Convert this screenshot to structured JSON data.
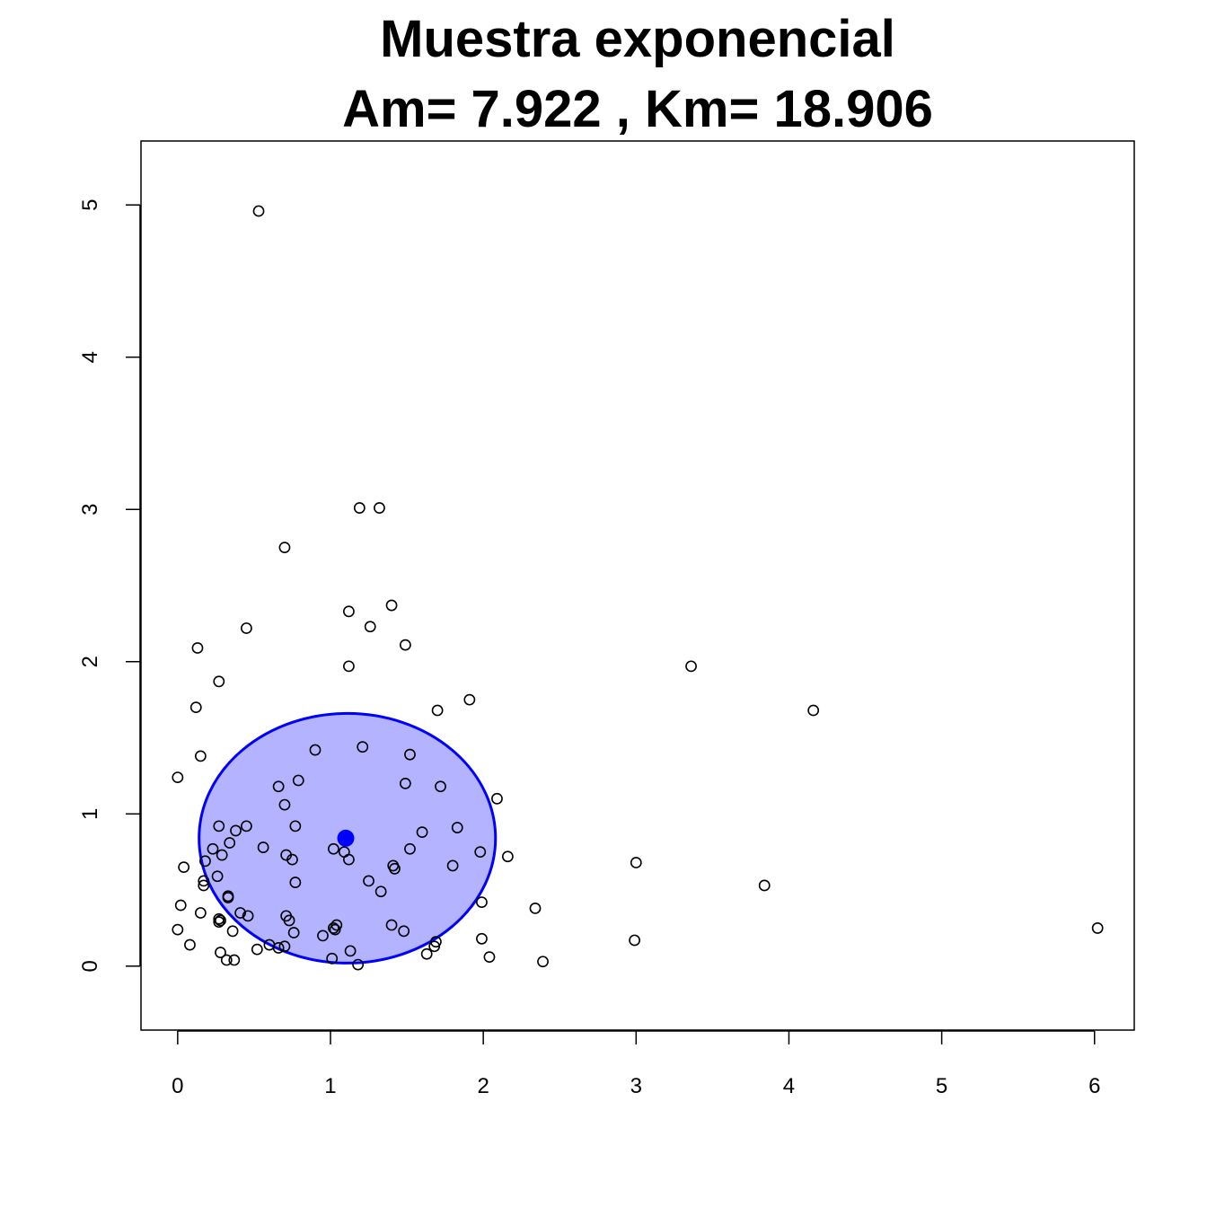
{
  "chart_data": {
    "type": "scatter",
    "title": "Muestra exponencial",
    "subtitle": "Am= 7.922 , Km= 18.906",
    "xlabel": "",
    "ylabel": "",
    "xlim": [
      -0.24,
      6.26
    ],
    "ylim": [
      -0.42,
      5.42
    ],
    "xticks": [
      "0",
      "1",
      "2",
      "3",
      "4",
      "5",
      "6"
    ],
    "yticks": [
      "0",
      "1",
      "2",
      "3",
      "4",
      "5"
    ],
    "grid": false,
    "legend": "none",
    "colors": {
      "points": "#000000",
      "center": "#0000ff",
      "ellipse_fill": "#b3b3ff",
      "ellipse_stroke": "#0000ff"
    },
    "center": {
      "x": 1.1,
      "y": 0.84
    },
    "ellipse": {
      "cx": 1.11,
      "cy": 0.84,
      "rx": 0.97,
      "ry": 0.82
    },
    "points": [
      {
        "x": 0.53,
        "y": 4.96
      },
      {
        "x": 1.19,
        "y": 3.01
      },
      {
        "x": 1.32,
        "y": 3.01
      },
      {
        "x": 0.7,
        "y": 2.75
      },
      {
        "x": 1.4,
        "y": 2.37
      },
      {
        "x": 1.12,
        "y": 2.33
      },
      {
        "x": 0.45,
        "y": 2.22
      },
      {
        "x": 1.26,
        "y": 2.23
      },
      {
        "x": 1.49,
        "y": 2.11
      },
      {
        "x": 0.13,
        "y": 2.09
      },
      {
        "x": 1.12,
        "y": 1.97
      },
      {
        "x": 3.36,
        "y": 1.97
      },
      {
        "x": 0.27,
        "y": 1.87
      },
      {
        "x": 1.91,
        "y": 1.75
      },
      {
        "x": 0.12,
        "y": 1.7
      },
      {
        "x": 1.7,
        "y": 1.68
      },
      {
        "x": 4.16,
        "y": 1.68
      },
      {
        "x": 1.21,
        "y": 1.44
      },
      {
        "x": 0.9,
        "y": 1.42
      },
      {
        "x": 1.52,
        "y": 1.39
      },
      {
        "x": 0.15,
        "y": 1.38
      },
      {
        "x": 0.0,
        "y": 1.24
      },
      {
        "x": 0.79,
        "y": 1.22
      },
      {
        "x": 1.49,
        "y": 1.2
      },
      {
        "x": 0.66,
        "y": 1.18
      },
      {
        "x": 1.72,
        "y": 1.18
      },
      {
        "x": 2.09,
        "y": 1.1
      },
      {
        "x": 0.7,
        "y": 1.06
      },
      {
        "x": 0.27,
        "y": 0.92
      },
      {
        "x": 0.45,
        "y": 0.92
      },
      {
        "x": 0.77,
        "y": 0.92
      },
      {
        "x": 1.83,
        "y": 0.91
      },
      {
        "x": 0.38,
        "y": 0.89
      },
      {
        "x": 1.6,
        "y": 0.88
      },
      {
        "x": 0.34,
        "y": 0.81
      },
      {
        "x": 0.56,
        "y": 0.78
      },
      {
        "x": 0.23,
        "y": 0.77
      },
      {
        "x": 1.02,
        "y": 0.77
      },
      {
        "x": 1.52,
        "y": 0.77
      },
      {
        "x": 1.09,
        "y": 0.75
      },
      {
        "x": 1.98,
        "y": 0.75
      },
      {
        "x": 0.29,
        "y": 0.73
      },
      {
        "x": 0.71,
        "y": 0.73
      },
      {
        "x": 2.16,
        "y": 0.72
      },
      {
        "x": 0.75,
        "y": 0.7
      },
      {
        "x": 1.12,
        "y": 0.7
      },
      {
        "x": 0.18,
        "y": 0.69
      },
      {
        "x": 3.0,
        "y": 0.68
      },
      {
        "x": 1.41,
        "y": 0.66
      },
      {
        "x": 1.8,
        "y": 0.66
      },
      {
        "x": 0.04,
        "y": 0.65
      },
      {
        "x": 1.42,
        "y": 0.64
      },
      {
        "x": 0.26,
        "y": 0.59
      },
      {
        "x": 0.17,
        "y": 0.56
      },
      {
        "x": 0.77,
        "y": 0.55
      },
      {
        "x": 1.25,
        "y": 0.56
      },
      {
        "x": 0.17,
        "y": 0.53
      },
      {
        "x": 3.84,
        "y": 0.53
      },
      {
        "x": 1.33,
        "y": 0.49
      },
      {
        "x": 0.33,
        "y": 0.46
      },
      {
        "x": 0.33,
        "y": 0.45
      },
      {
        "x": 1.99,
        "y": 0.42
      },
      {
        "x": 0.02,
        "y": 0.4
      },
      {
        "x": 2.34,
        "y": 0.38
      },
      {
        "x": 0.15,
        "y": 0.35
      },
      {
        "x": 0.41,
        "y": 0.35
      },
      {
        "x": 0.46,
        "y": 0.33
      },
      {
        "x": 0.71,
        "y": 0.33
      },
      {
        "x": 0.27,
        "y": 0.31
      },
      {
        "x": 0.28,
        "y": 0.3
      },
      {
        "x": 0.73,
        "y": 0.3
      },
      {
        "x": 0.27,
        "y": 0.29
      },
      {
        "x": 1.04,
        "y": 0.27
      },
      {
        "x": 1.4,
        "y": 0.27
      },
      {
        "x": 1.02,
        "y": 0.25
      },
      {
        "x": 0.0,
        "y": 0.24
      },
      {
        "x": 1.03,
        "y": 0.24
      },
      {
        "x": 6.02,
        "y": 0.25
      },
      {
        "x": 1.48,
        "y": 0.23
      },
      {
        "x": 0.36,
        "y": 0.23
      },
      {
        "x": 0.76,
        "y": 0.22
      },
      {
        "x": 0.95,
        "y": 0.2
      },
      {
        "x": 1.99,
        "y": 0.18
      },
      {
        "x": 2.99,
        "y": 0.17
      },
      {
        "x": 1.69,
        "y": 0.16
      },
      {
        "x": 0.6,
        "y": 0.14
      },
      {
        "x": 0.08,
        "y": 0.14
      },
      {
        "x": 0.7,
        "y": 0.13
      },
      {
        "x": 0.66,
        "y": 0.12
      },
      {
        "x": 1.68,
        "y": 0.13
      },
      {
        "x": 0.52,
        "y": 0.11
      },
      {
        "x": 1.13,
        "y": 0.1
      },
      {
        "x": 0.28,
        "y": 0.09
      },
      {
        "x": 1.63,
        "y": 0.08
      },
      {
        "x": 2.04,
        "y": 0.06
      },
      {
        "x": 1.01,
        "y": 0.05
      },
      {
        "x": 0.32,
        "y": 0.04
      },
      {
        "x": 0.37,
        "y": 0.04
      },
      {
        "x": 2.39,
        "y": 0.03
      },
      {
        "x": 1.18,
        "y": 0.01
      }
    ]
  }
}
